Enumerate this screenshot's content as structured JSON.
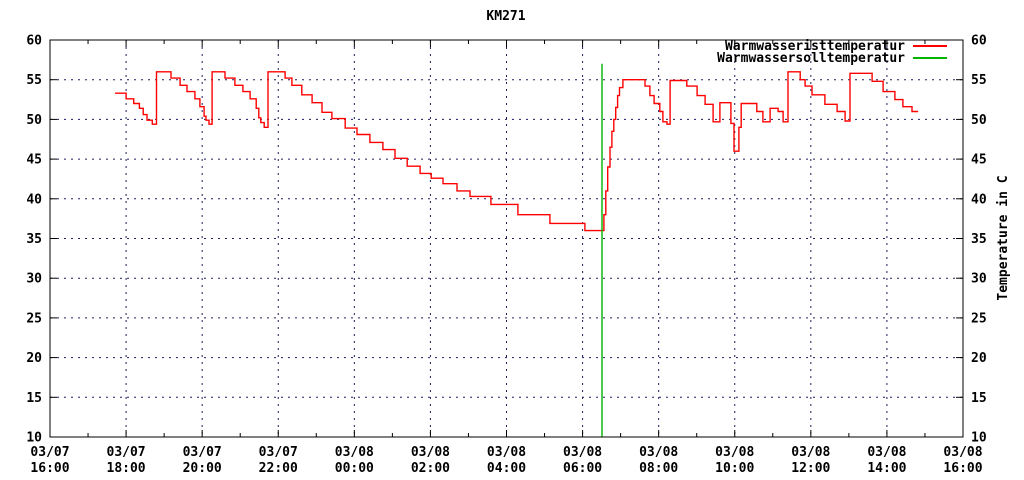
{
  "title": "KM271",
  "legend": {
    "items": [
      {
        "label": "Warmwasseristtemperatur",
        "color": "#ff0000"
      },
      {
        "label": "Warmwassersolltemperatur",
        "color": "#00b400"
      }
    ]
  },
  "colors": {
    "background": "#ffffff",
    "grid": "#1c1c5e",
    "axis": "#000000",
    "ist_line": "#ff0000",
    "soll_line": "#00b400"
  },
  "chart_data": {
    "type": "line",
    "title": "KM271",
    "ylabel": "Temperature in C",
    "ylim": [
      10,
      60
    ],
    "y_ticks": [
      10,
      15,
      20,
      25,
      30,
      35,
      40,
      45,
      50,
      55,
      60
    ],
    "x_hours_range": [
      0,
      24
    ],
    "x_minor_every_hours": 1,
    "grid": "dotted",
    "legend_position": "top-right-inside",
    "x_ticks": [
      {
        "hour": 0,
        "date": "03/07",
        "time": "16:00"
      },
      {
        "hour": 2,
        "date": "03/07",
        "time": "18:00"
      },
      {
        "hour": 4,
        "date": "03/07",
        "time": "20:00"
      },
      {
        "hour": 6,
        "date": "03/07",
        "time": "22:00"
      },
      {
        "hour": 8,
        "date": "03/08",
        "time": "00:00"
      },
      {
        "hour": 10,
        "date": "03/08",
        "time": "02:00"
      },
      {
        "hour": 12,
        "date": "03/08",
        "time": "04:00"
      },
      {
        "hour": 14,
        "date": "03/08",
        "time": "06:00"
      },
      {
        "hour": 16,
        "date": "03/08",
        "time": "08:00"
      },
      {
        "hour": 18,
        "date": "03/08",
        "time": "10:00"
      },
      {
        "hour": 20,
        "date": "03/08",
        "time": "12:00"
      },
      {
        "hour": 22,
        "date": "03/08",
        "time": "14:00"
      },
      {
        "hour": 24,
        "date": "03/08",
        "time": "16:00"
      }
    ],
    "series": [
      {
        "name": "Warmwasseristtemperatur",
        "color": "#ff0000",
        "style": "steps",
        "points": [
          [
            1.71,
            53.3
          ],
          [
            2.0,
            52.6
          ],
          [
            2.2,
            52.0
          ],
          [
            2.35,
            51.4
          ],
          [
            2.45,
            50.6
          ],
          [
            2.55,
            49.9
          ],
          [
            2.69,
            49.4
          ],
          [
            2.8,
            56.0
          ],
          [
            3.18,
            55.2
          ],
          [
            3.42,
            54.3
          ],
          [
            3.6,
            53.5
          ],
          [
            3.81,
            52.6
          ],
          [
            3.94,
            51.6
          ],
          [
            4.05,
            50.4
          ],
          [
            4.1,
            49.9
          ],
          [
            4.18,
            49.4
          ],
          [
            4.26,
            56.0
          ],
          [
            4.6,
            55.2
          ],
          [
            4.86,
            54.3
          ],
          [
            5.07,
            53.5
          ],
          [
            5.26,
            52.6
          ],
          [
            5.42,
            51.4
          ],
          [
            5.49,
            50.2
          ],
          [
            5.54,
            49.6
          ],
          [
            5.63,
            49.0
          ],
          [
            5.73,
            56.0
          ],
          [
            6.18,
            55.2
          ],
          [
            6.36,
            54.3
          ],
          [
            6.62,
            53.1
          ],
          [
            6.89,
            52.1
          ],
          [
            7.15,
            50.9
          ],
          [
            7.41,
            50.1
          ],
          [
            7.76,
            48.9
          ],
          [
            8.07,
            48.1
          ],
          [
            8.41,
            47.1
          ],
          [
            8.75,
            46.2
          ],
          [
            9.07,
            45.1
          ],
          [
            9.39,
            44.1
          ],
          [
            9.73,
            43.2
          ],
          [
            10.02,
            42.6
          ],
          [
            10.33,
            41.9
          ],
          [
            10.7,
            41.0
          ],
          [
            11.04,
            40.3
          ],
          [
            11.59,
            39.3
          ],
          [
            12.3,
            38.0
          ],
          [
            13.14,
            36.9
          ],
          [
            14.06,
            36.0
          ],
          [
            14.56,
            38.0
          ],
          [
            14.61,
            41.0
          ],
          [
            14.66,
            44.0
          ],
          [
            14.72,
            46.5
          ],
          [
            14.77,
            48.5
          ],
          [
            14.82,
            50.0
          ],
          [
            14.87,
            51.5
          ],
          [
            14.92,
            53.0
          ],
          [
            14.97,
            54.0
          ],
          [
            15.06,
            55.0
          ],
          [
            15.64,
            54.2
          ],
          [
            15.77,
            53.0
          ],
          [
            15.88,
            52.0
          ],
          [
            16.03,
            51.0
          ],
          [
            16.11,
            49.7
          ],
          [
            16.22,
            49.4
          ],
          [
            16.3,
            54.9
          ],
          [
            16.74,
            54.2
          ],
          [
            17.01,
            53.0
          ],
          [
            17.22,
            51.9
          ],
          [
            17.43,
            49.7
          ],
          [
            17.61,
            52.1
          ],
          [
            17.9,
            49.5
          ],
          [
            17.98,
            46.0
          ],
          [
            18.11,
            49.0
          ],
          [
            18.17,
            52.0
          ],
          [
            18.58,
            51.0
          ],
          [
            18.74,
            49.7
          ],
          [
            18.93,
            51.4
          ],
          [
            19.14,
            51.0
          ],
          [
            19.27,
            49.7
          ],
          [
            19.4,
            56.0
          ],
          [
            19.72,
            55.0
          ],
          [
            19.85,
            54.2
          ],
          [
            20.03,
            53.1
          ],
          [
            20.37,
            51.9
          ],
          [
            20.69,
            51.0
          ],
          [
            20.9,
            49.8
          ],
          [
            21.03,
            55.8
          ],
          [
            21.61,
            54.8
          ],
          [
            21.9,
            53.5
          ],
          [
            22.21,
            52.5
          ],
          [
            22.42,
            51.6
          ],
          [
            22.66,
            51.0
          ],
          [
            22.82,
            51.0
          ]
        ]
      },
      {
        "name": "Warmwassersolltemperatur",
        "color": "#00b400",
        "style": "segment",
        "points": [
          [
            14.51,
            57.0
          ],
          [
            14.51,
            10.0
          ]
        ]
      }
    ]
  }
}
